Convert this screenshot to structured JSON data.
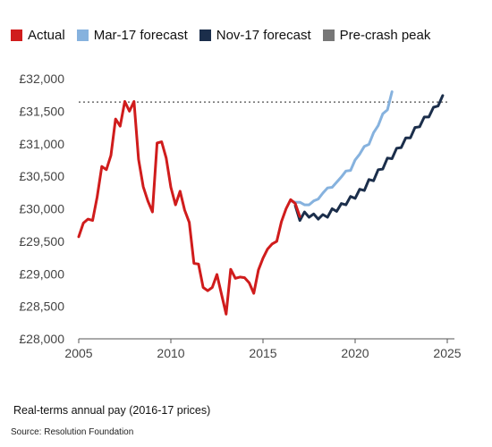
{
  "legend": [
    {
      "label": "Actual",
      "color": "#d01c1c"
    },
    {
      "label": "Mar-17 forecast",
      "color": "#86b2de"
    },
    {
      "label": "Nov-17 forecast",
      "color": "#1b2e4b"
    },
    {
      "label": "Pre-crash peak",
      "color": "#777777"
    }
  ],
  "caption": "Real-terms annual pay (2016-17 prices)",
  "source": "Source: Resolution Foundation",
  "chart_data": {
    "type": "line",
    "title": "",
    "xlabel": "",
    "ylabel": "",
    "xlim": [
      2005,
      2025
    ],
    "ylim": [
      28000,
      32000
    ],
    "x_ticks": [
      2005,
      2010,
      2015,
      2020,
      2025
    ],
    "x_tick_labels": [
      "2005",
      "2010",
      "2015",
      "2020",
      "2025"
    ],
    "y_ticks": [
      28000,
      28500,
      29000,
      29500,
      30000,
      30500,
      31000,
      31500,
      32000
    ],
    "y_tick_labels": [
      "£28,000",
      "£28,500",
      "£29,000",
      "£29,500",
      "£30,000",
      "£30,500",
      "£31,000",
      "£31,500",
      "£32,000"
    ],
    "grid": false,
    "legend_position": "top",
    "reference_line": {
      "name": "Pre-crash peak",
      "y": 31640,
      "x_range": [
        2005,
        2025
      ],
      "style": "dotted",
      "color": "#777777"
    },
    "series": [
      {
        "name": "Actual",
        "color": "#d01c1c",
        "points": [
          [
            2005.0,
            29570
          ],
          [
            2005.25,
            29780
          ],
          [
            2005.5,
            29840
          ],
          [
            2005.75,
            29820
          ],
          [
            2006.0,
            30180
          ],
          [
            2006.25,
            30650
          ],
          [
            2006.5,
            30600
          ],
          [
            2006.75,
            30820
          ],
          [
            2007.0,
            31380
          ],
          [
            2007.25,
            31270
          ],
          [
            2007.5,
            31650
          ],
          [
            2007.75,
            31500
          ],
          [
            2008.0,
            31650
          ],
          [
            2008.25,
            30760
          ],
          [
            2008.5,
            30340
          ],
          [
            2008.75,
            30120
          ],
          [
            2009.0,
            29950
          ],
          [
            2009.25,
            31010
          ],
          [
            2009.5,
            31030
          ],
          [
            2009.75,
            30780
          ],
          [
            2010.0,
            30330
          ],
          [
            2010.25,
            30060
          ],
          [
            2010.5,
            30270
          ],
          [
            2010.75,
            29980
          ],
          [
            2011.0,
            29790
          ],
          [
            2011.25,
            29160
          ],
          [
            2011.5,
            29150
          ],
          [
            2011.75,
            28790
          ],
          [
            2012.0,
            28740
          ],
          [
            2012.25,
            28790
          ],
          [
            2012.5,
            28990
          ],
          [
            2012.75,
            28680
          ],
          [
            2013.0,
            28380
          ],
          [
            2013.25,
            29070
          ],
          [
            2013.5,
            28930
          ],
          [
            2013.75,
            28950
          ],
          [
            2014.0,
            28940
          ],
          [
            2014.25,
            28860
          ],
          [
            2014.5,
            28700
          ],
          [
            2014.75,
            29060
          ],
          [
            2015.0,
            29240
          ],
          [
            2015.25,
            29380
          ],
          [
            2015.5,
            29460
          ],
          [
            2015.75,
            29500
          ],
          [
            2016.0,
            29800
          ],
          [
            2016.25,
            30000
          ],
          [
            2016.5,
            30140
          ],
          [
            2016.75,
            30080
          ],
          [
            2017.0,
            29880
          ]
        ]
      },
      {
        "name": "Mar-17 forecast",
        "color": "#86b2de",
        "points": [
          [
            2016.5,
            30120
          ],
          [
            2016.75,
            30100
          ],
          [
            2017.0,
            30100
          ],
          [
            2017.25,
            30060
          ],
          [
            2017.5,
            30060
          ],
          [
            2017.75,
            30120
          ],
          [
            2018.0,
            30150
          ],
          [
            2018.25,
            30240
          ],
          [
            2018.5,
            30320
          ],
          [
            2018.75,
            30330
          ],
          [
            2019.0,
            30410
          ],
          [
            2019.25,
            30490
          ],
          [
            2019.5,
            30580
          ],
          [
            2019.75,
            30590
          ],
          [
            2020.0,
            30750
          ],
          [
            2020.25,
            30840
          ],
          [
            2020.5,
            30960
          ],
          [
            2020.75,
            30990
          ],
          [
            2021.0,
            31170
          ],
          [
            2021.25,
            31280
          ],
          [
            2021.5,
            31460
          ],
          [
            2021.75,
            31520
          ],
          [
            2022.0,
            31800
          ]
        ]
      },
      {
        "name": "Nov-17 forecast",
        "color": "#1b2e4b",
        "points": [
          [
            2016.75,
            30050
          ],
          [
            2017.0,
            29820
          ],
          [
            2017.25,
            29950
          ],
          [
            2017.5,
            29870
          ],
          [
            2017.75,
            29920
          ],
          [
            2018.0,
            29840
          ],
          [
            2018.25,
            29910
          ],
          [
            2018.5,
            29870
          ],
          [
            2018.75,
            30000
          ],
          [
            2019.0,
            29960
          ],
          [
            2019.25,
            30080
          ],
          [
            2019.5,
            30060
          ],
          [
            2019.75,
            30190
          ],
          [
            2020.0,
            30160
          ],
          [
            2020.25,
            30300
          ],
          [
            2020.5,
            30280
          ],
          [
            2020.75,
            30450
          ],
          [
            2021.0,
            30430
          ],
          [
            2021.25,
            30600
          ],
          [
            2021.5,
            30610
          ],
          [
            2021.75,
            30780
          ],
          [
            2022.0,
            30770
          ],
          [
            2022.25,
            30930
          ],
          [
            2022.5,
            30940
          ],
          [
            2022.75,
            31090
          ],
          [
            2023.0,
            31090
          ],
          [
            2023.25,
            31250
          ],
          [
            2023.5,
            31260
          ],
          [
            2023.75,
            31410
          ],
          [
            2024.0,
            31410
          ],
          [
            2024.25,
            31560
          ],
          [
            2024.5,
            31580
          ],
          [
            2024.75,
            31740
          ]
        ]
      }
    ]
  }
}
